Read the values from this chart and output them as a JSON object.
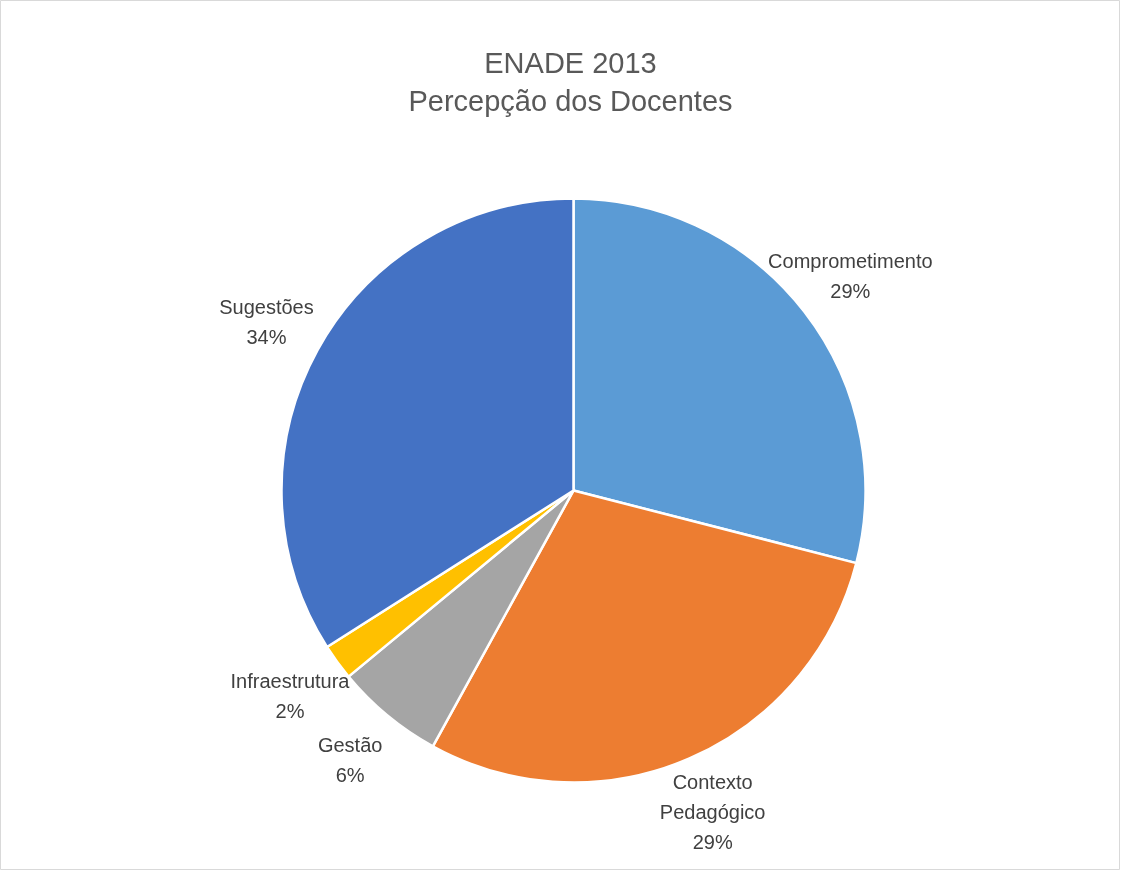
{
  "chart_data": {
    "type": "pie",
    "title": "ENADE 2013\nPercepção dos Docentes",
    "categories": [
      "Comprometimento",
      "Contexto Pedagógico",
      "Gestão",
      "Infraestrutura",
      "Sugestões"
    ],
    "values": [
      29,
      29,
      6,
      2,
      34
    ],
    "value_labels": [
      "29%",
      "29%",
      "6%",
      "2%",
      "34%"
    ],
    "colors": [
      "#5b9bd5",
      "#ed7d31",
      "#a5a5a5",
      "#ffc000",
      "#4472c4"
    ]
  }
}
